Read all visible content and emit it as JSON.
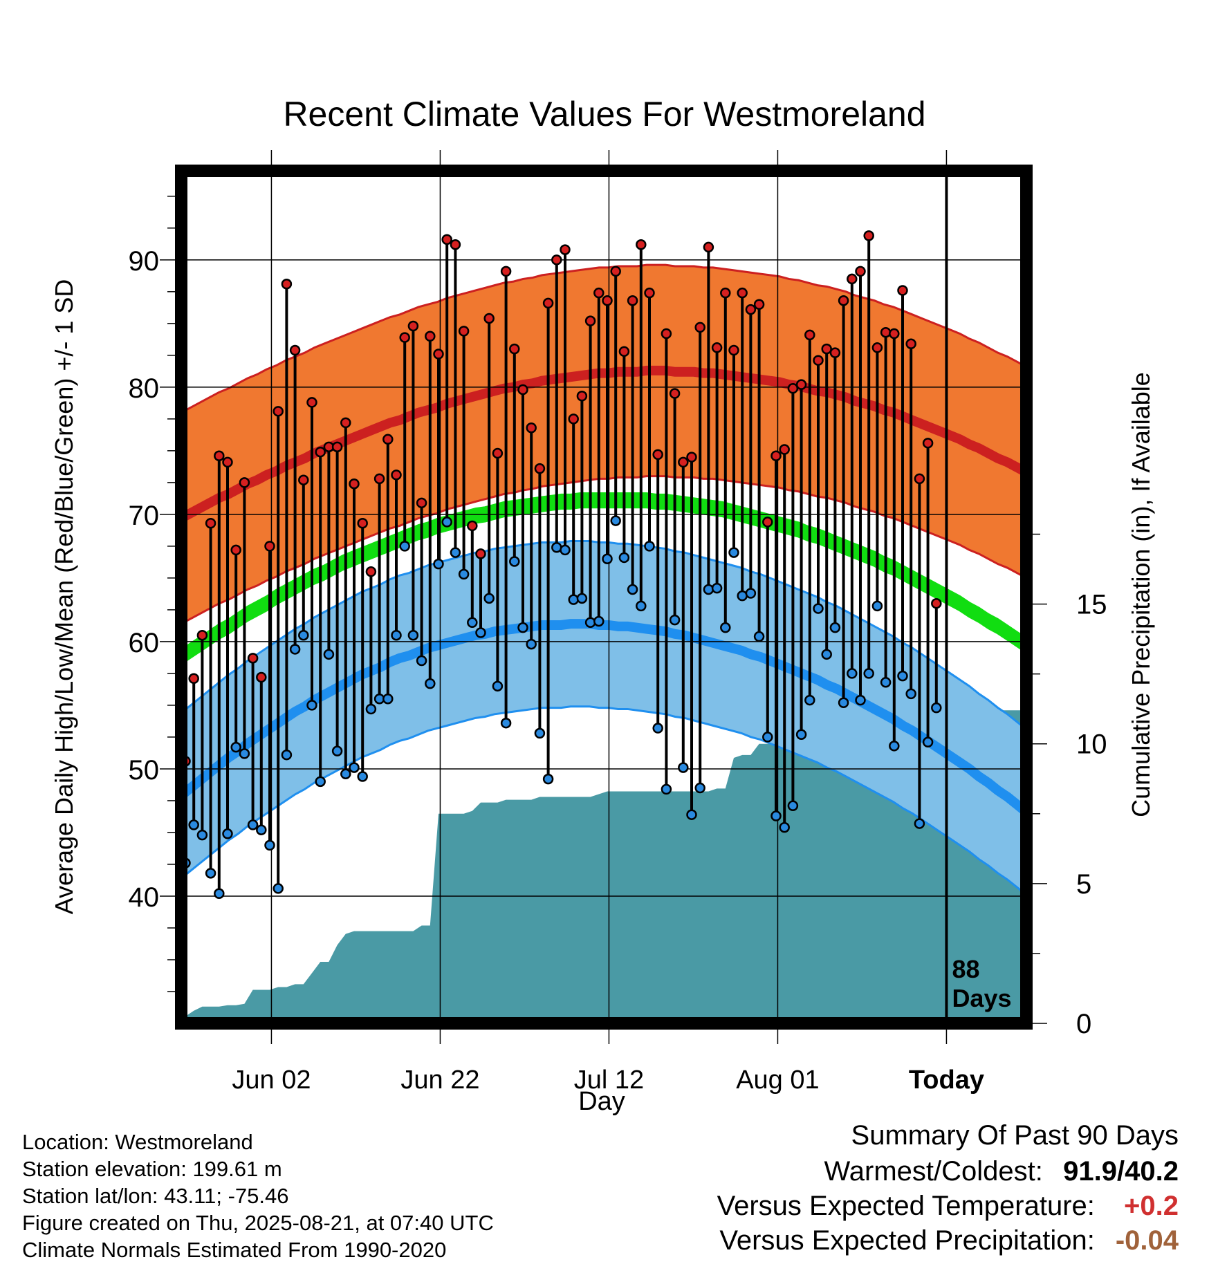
{
  "title": "Recent Climate Values For Westmoreland",
  "colors": {
    "high_band": "#f07830",
    "high_edge": "#cc2020",
    "mean_line": "#11dd11",
    "low_band": "#7fbfe8",
    "low_edge": "#1f8fef",
    "precip": "#4a9aa5",
    "high_point": "#d62020",
    "low_point": "#2a8ae0",
    "warm_value": "#d03030",
    "precip_value": "#a0623a"
  },
  "summary": {
    "heading": "Summary Of Past 90 Days",
    "warmest_label": "Warmest/Coldest:",
    "warmest_value": "91.9/40.2",
    "temp_label": "Versus Expected Temperature:",
    "temp_value": "+0.2",
    "precip_label": "Versus Expected Precipitation:",
    "precip_value": "-0.04"
  },
  "info": {
    "location": "Location: Westmoreland",
    "elevation": "Station elevation: 199.61 m",
    "latlon": "Station lat/lon: 43.11; -75.46",
    "created": "Figure created on Thu, 2025-08-21, at 07:40 UTC",
    "normals": "Climate Normals Estimated From 1990-2020"
  },
  "chart_data": {
    "type": "line",
    "title": "Recent Climate Values For Westmoreland",
    "xlabel": "Day",
    "ylabel": "Average Daily High/Low/Mean (Red/Blue/Green) +/- 1 SD",
    "y2label": "Cumulative Precipitation (in), If Available",
    "x_ticks": [
      "Jun 02",
      "Jun 22",
      "Jul 12",
      "Aug 01",
      "Today"
    ],
    "y_ticks": [
      40,
      50,
      60,
      70,
      80,
      90
    ],
    "y2_ticks": [
      0,
      5,
      10,
      15
    ],
    "ylim": [
      30,
      97
    ],
    "y2lim": [
      0,
      30.5
    ],
    "x_range": [
      "2025-05-22",
      "2025-08-30"
    ],
    "today_label": "88\nDays",
    "grid": true,
    "daily_high": [
      50.6,
      57.1,
      60.5,
      69.3,
      74.6,
      74.1,
      67.2,
      72.5,
      58.7,
      57.2,
      67.5,
      78.1,
      88.1,
      82.9,
      72.7,
      78.8,
      74.9,
      75.3,
      75.3,
      77.2,
      72.4,
      69.3,
      65.5,
      72.8,
      75.9,
      73.1,
      83.9,
      84.8,
      70.9,
      84.0,
      82.6,
      91.6,
      91.2,
      84.4,
      69.1,
      66.9,
      85.4,
      74.8,
      89.1,
      83.0,
      79.8,
      76.8,
      73.6,
      86.6,
      90.0,
      90.8,
      77.5,
      79.3,
      85.2,
      87.4,
      86.8,
      89.1,
      82.8,
      86.8,
      91.2,
      87.4,
      74.7,
      84.2,
      79.5,
      74.1,
      74.5,
      84.7,
      91.0,
      83.1,
      87.4,
      82.9,
      87.4,
      86.1,
      86.5,
      69.4,
      74.6,
      75.1,
      79.9,
      80.2,
      84.1,
      82.1,
      83.0,
      82.7,
      86.8,
      88.5,
      89.1,
      91.9,
      83.1,
      84.3,
      84.2,
      87.6,
      83.4,
      72.8,
      75.6,
      63.0
    ],
    "daily_low": [
      42.6,
      45.6,
      44.8,
      41.8,
      40.2,
      44.9,
      51.7,
      51.2,
      45.6,
      45.2,
      44.0,
      40.6,
      51.1,
      59.4,
      60.5,
      55.0,
      49.0,
      59.0,
      51.4,
      49.6,
      50.1,
      49.4,
      54.7,
      55.5,
      55.5,
      60.5,
      67.5,
      60.5,
      58.5,
      56.7,
      66.1,
      69.4,
      67.0,
      65.3,
      61.5,
      60.7,
      63.4,
      56.5,
      53.6,
      66.3,
      61.1,
      59.8,
      52.8,
      49.2,
      67.4,
      67.2,
      63.3,
      63.4,
      61.5,
      61.6,
      66.5,
      69.5,
      66.6,
      64.1,
      62.8,
      67.5,
      53.2,
      48.4,
      61.7,
      50.1,
      46.4,
      48.5,
      64.1,
      64.2,
      61.1,
      67.0,
      63.6,
      63.8,
      60.4,
      52.5,
      46.3,
      45.4,
      47.1,
      52.7,
      55.4,
      62.6,
      59.0,
      61.1,
      55.2,
      57.5,
      55.4,
      57.5,
      62.8,
      56.8,
      51.8,
      57.3,
      55.9,
      45.7,
      52.1,
      54.8
    ],
    "normal_high": [
      69.7,
      70.1,
      70.5,
      70.9,
      71.3,
      71.6,
      72.0,
      72.4,
      72.7,
      73.1,
      73.4,
      73.8,
      74.1,
      74.4,
      74.8,
      75.1,
      75.4,
      75.7,
      76.0,
      76.3,
      76.6,
      76.9,
      77.2,
      77.4,
      77.7,
      78.0,
      78.2,
      78.4,
      78.7,
      78.9,
      79.1,
      79.3,
      79.5,
      79.7,
      79.9,
      80.0,
      80.2,
      80.3,
      80.5,
      80.6,
      80.7,
      80.8,
      80.9,
      81.0,
      81.1,
      81.1,
      81.2,
      81.2,
      81.2,
      81.3,
      81.3,
      81.3,
      81.2,
      81.2,
      81.2,
      81.1,
      81.1,
      81.0,
      80.9,
      80.8,
      80.7,
      80.6,
      80.5,
      80.4,
      80.2,
      80.1,
      79.9,
      79.7,
      79.6,
      79.4,
      79.2,
      78.9,
      78.7,
      78.5,
      78.2,
      78.0,
      77.7,
      77.4,
      77.1,
      76.8,
      76.5,
      76.2,
      75.9,
      75.5,
      75.2,
      74.8,
      74.4,
      74.1,
      73.7,
      73.3
    ],
    "normal_low": [
      47.9,
      48.5,
      49.1,
      49.7,
      50.3,
      50.9,
      51.4,
      52.0,
      52.5,
      53.0,
      53.5,
      54.0,
      54.5,
      54.9,
      55.4,
      55.8,
      56.2,
      56.6,
      57.0,
      57.4,
      57.7,
      58.0,
      58.4,
      58.7,
      58.9,
      59.2,
      59.5,
      59.7,
      59.9,
      60.1,
      60.3,
      60.5,
      60.6,
      60.8,
      60.9,
      61.0,
      61.1,
      61.2,
      61.3,
      61.3,
      61.3,
      61.4,
      61.4,
      61.4,
      61.3,
      61.3,
      61.2,
      61.2,
      61.1,
      61.0,
      60.9,
      60.8,
      60.6,
      60.5,
      60.3,
      60.1,
      59.9,
      59.7,
      59.5,
      59.3,
      59.0,
      58.8,
      58.5,
      58.2,
      57.9,
      57.6,
      57.3,
      57.0,
      56.6,
      56.3,
      55.9,
      55.5,
      55.1,
      54.7,
      54.3,
      53.9,
      53.4,
      53.0,
      52.5,
      52.0,
      51.5,
      51.0,
      50.5,
      50.0,
      49.4,
      48.9,
      48.3,
      47.8,
      47.2,
      46.6
    ],
    "normal_mean": [
      58.8,
      59.3,
      59.8,
      60.3,
      60.8,
      61.2,
      61.7,
      62.2,
      62.6,
      63.0,
      63.5,
      63.9,
      64.3,
      64.7,
      65.1,
      65.4,
      65.8,
      66.2,
      66.5,
      66.8,
      67.1,
      67.4,
      67.7,
      68.0,
      68.3,
      68.6,
      68.8,
      69.1,
      69.3,
      69.5,
      69.7,
      69.9,
      70.0,
      70.2,
      70.4,
      70.5,
      70.6,
      70.7,
      70.8,
      70.9,
      71.0,
      71.0,
      71.1,
      71.1,
      71.1,
      71.1,
      71.1,
      71.1,
      71.1,
      71.1,
      71.0,
      71.0,
      70.9,
      70.8,
      70.7,
      70.6,
      70.5,
      70.4,
      70.2,
      70.0,
      69.8,
      69.6,
      69.4,
      69.2,
      69.0,
      68.8,
      68.5,
      68.3,
      68.0,
      67.7,
      67.4,
      67.1,
      66.8,
      66.5,
      66.1,
      65.8,
      65.4,
      65.0,
      64.6,
      64.2,
      63.8,
      63.4,
      63.0,
      62.5,
      62.1,
      61.6,
      61.2,
      60.7,
      60.2,
      59.7
    ],
    "sd_high": 8.3,
    "sd_low": 6.5,
    "sd_mean_halfwidth": 0.55,
    "cumulative_precip": [
      0.25,
      0.45,
      0.6,
      0.6,
      0.6,
      0.65,
      0.65,
      0.7,
      1.2,
      1.2,
      1.2,
      1.3,
      1.3,
      1.4,
      1.4,
      1.8,
      2.2,
      2.2,
      2.8,
      3.2,
      3.3,
      3.3,
      3.3,
      3.3,
      3.3,
      3.3,
      3.3,
      3.3,
      3.5,
      3.5,
      7.5,
      7.5,
      7.5,
      7.5,
      7.6,
      7.9,
      7.9,
      7.9,
      8.0,
      8.0,
      8.0,
      8.0,
      8.1,
      8.1,
      8.1,
      8.1,
      8.1,
      8.1,
      8.1,
      8.2,
      8.3,
      8.3,
      8.3,
      8.3,
      8.3,
      8.3,
      8.3,
      8.3,
      8.3,
      8.3,
      8.3,
      8.3,
      8.3,
      8.4,
      8.4,
      9.5,
      9.6,
      9.6,
      10.0,
      10.0,
      10.0,
      10.0,
      10.0,
      10.0,
      10.0,
      10.0,
      10.0,
      10.0,
      10.0,
      10.0,
      10.0,
      10.0,
      10.0,
      10.0,
      10.0,
      10.0,
      10.0,
      10.6,
      11.0,
      11.0,
      11.2
    ]
  }
}
